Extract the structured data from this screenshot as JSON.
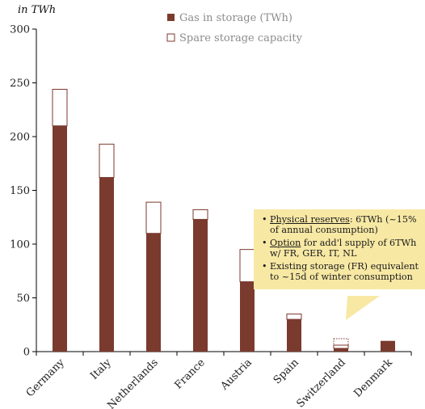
{
  "chart_data": {
    "type": "bar",
    "stacked": true,
    "unit_label": "in TWh",
    "categories": [
      "Germany",
      "Italy",
      "Netherlands",
      "France",
      "Austria",
      "Spain",
      "Switzerland",
      "Denmark"
    ],
    "series": [
      {
        "name": "Gas in storage (TWh)",
        "values": [
          210,
          162,
          110,
          123,
          65,
          30,
          3,
          10
        ],
        "color": "#7b3a2e"
      },
      {
        "name": "Spare storage capacity",
        "values": [
          34,
          31,
          29,
          9,
          30,
          5,
          3,
          0
        ],
        "color": "#ffffff"
      }
    ],
    "extra_dotted_capacity": {
      "category": "Switzerland",
      "value": 6
    },
    "ylim": [
      0,
      300
    ],
    "yticks": [
      0,
      50,
      100,
      150,
      200,
      250,
      300
    ],
    "grid": false,
    "legend_position": "top-center"
  },
  "callout": {
    "items": [
      {
        "underlined": "Physical reserves",
        "text": ": 6TWh (~15% of annual consumption)"
      },
      {
        "underlined": "Option",
        "text": " for add'l supply of 6TWh w/ FR, GER, IT, NL"
      },
      {
        "underlined": "",
        "text": "Existing storage (FR) equivalent to ~15d of winter consumption"
      }
    ],
    "background": "#f7e8a4"
  }
}
